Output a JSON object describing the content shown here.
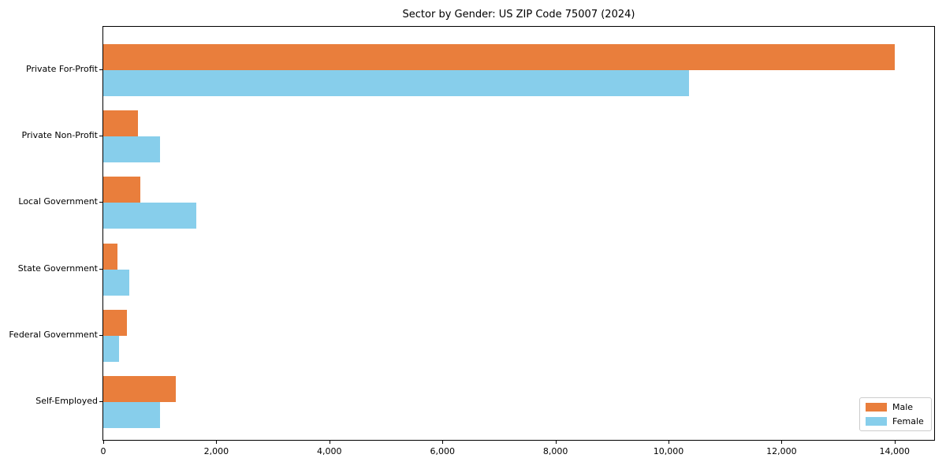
{
  "chart_data": {
    "type": "bar",
    "orientation": "horizontal",
    "title": "Sector by Gender: US ZIP Code 75007 (2024)",
    "categories": [
      "Private For-Profit",
      "Private Non-Profit",
      "Local Government",
      "State Government",
      "Federal Government",
      "Self-Employed"
    ],
    "series": [
      {
        "name": "Male",
        "color": "#E97E3C",
        "values": [
          14000,
          610,
          660,
          245,
          420,
          1290
        ]
      },
      {
        "name": "Female",
        "color": "#87CEEB",
        "values": [
          10360,
          1000,
          1650,
          465,
          280,
          1000
        ]
      }
    ],
    "xlabel": "",
    "ylabel": "",
    "xlim": [
      0,
      14700
    ],
    "xticks": [
      0,
      2000,
      4000,
      6000,
      8000,
      10000,
      12000,
      14000
    ],
    "xtick_labels": [
      "0",
      "2,000",
      "4,000",
      "6,000",
      "8,000",
      "10,000",
      "12,000",
      "14,000"
    ],
    "legend_position": "lower right",
    "grid": false,
    "background_color": "#ffffff",
    "spine_color": "#000000"
  }
}
